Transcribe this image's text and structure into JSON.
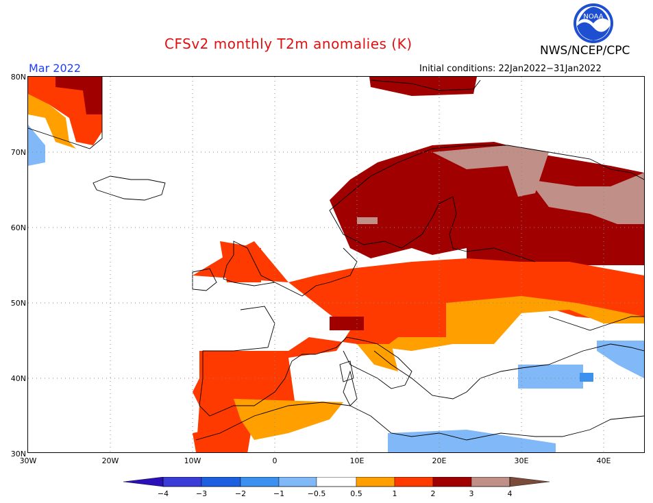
{
  "header": {
    "title": "CFSv2 monthly T2m anomalies (K)",
    "org": "NWS/NCEP/CPC",
    "logo_text": "NOAA",
    "month": "Mar 2022",
    "initial_conditions": "Initial conditions: 22Jan2022−31Jan2022"
  },
  "map": {
    "lat_labels": [
      "80N",
      "70N",
      "60N",
      "50N",
      "40N",
      "30N"
    ],
    "lon_labels": [
      "30W",
      "20W",
      "10W",
      "0",
      "10E",
      "20E",
      "30E",
      "40E"
    ],
    "lat_range": [
      30,
      80
    ],
    "lon_range": [
      -30,
      45
    ]
  },
  "colorbar": {
    "labels": [
      "−4",
      "−3",
      "−2",
      "−1",
      "−0.5",
      "0.5",
      "1",
      "2",
      "3",
      "4"
    ],
    "colors": [
      "#2a10b8",
      "#3b3bd8",
      "#1c5fe0",
      "#3c90f0",
      "#80b8f8",
      "#ffffff",
      "#ffa000",
      "#ff3a00",
      "#a00000",
      "#c09088",
      "#7a4a3a"
    ]
  }
}
